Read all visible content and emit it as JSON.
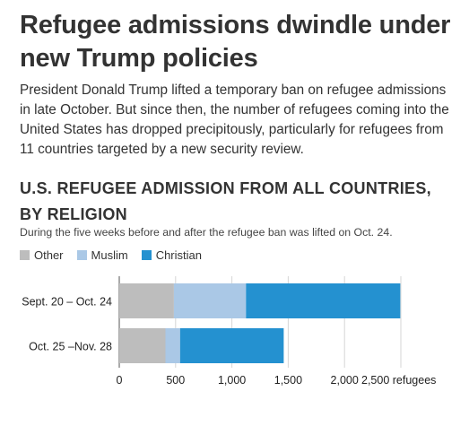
{
  "headline": "Refugee admissions dwindle under new Trump policies",
  "dek": "President Donald Trump lifted a temporary ban on refugee admissions in late October. But since then, the number of refugees coming into the United States has dropped precipitously, particularly for refugees from 11 countries targeted by a new security review.",
  "chart_data": {
    "type": "bar",
    "orientation": "horizontal",
    "stacked": true,
    "title": "U.S. REFUGEE ADMISSION FROM ALL COUNTRIES, BY RELIGION",
    "subtitle": "During the five weeks before and after the refugee ban was lifted on Oct. 24.",
    "categories": [
      "Sept. 20 – Oct. 24",
      "Oct. 25 –Nov. 28"
    ],
    "series": [
      {
        "name": "Other",
        "color": "#bdbdbd",
        "values": [
          485,
          410
        ]
      },
      {
        "name": "Muslim",
        "color": "#aac8e6",
        "values": [
          640,
          130
        ]
      },
      {
        "name": "Christian",
        "color": "#2491d0",
        "values": [
          1370,
          920
        ]
      }
    ],
    "xlim": [
      0,
      2500
    ],
    "xticks": [
      0,
      500,
      1000,
      1500,
      2000,
      2500
    ],
    "xtick_labels": [
      "0",
      "500",
      "1,000",
      "1,500",
      "2,000",
      "2,500 refugees"
    ],
    "legend_position": "top-left",
    "grid": true
  }
}
